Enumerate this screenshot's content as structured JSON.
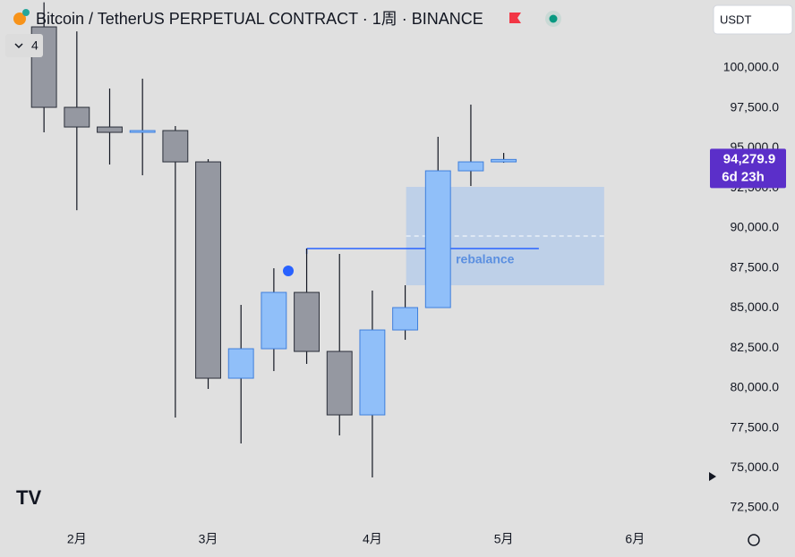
{
  "header": {
    "title": "Bitcoin / TetherUS PERPETUAL CONTRACT · 1周 · BINANCE",
    "currency": "USDT",
    "indicator_count": "4"
  },
  "chart_data": {
    "type": "candlestick",
    "x": [
      0,
      1,
      2,
      3,
      4,
      5,
      6,
      7,
      8,
      9,
      10,
      11,
      12,
      13,
      14
    ],
    "open": [
      102571,
      97540,
      96310,
      95975,
      96087,
      94130,
      80603,
      82447,
      85969,
      82279,
      78311,
      83621,
      85019,
      93571,
      94130
    ],
    "high": [
      104100,
      102290,
      98714,
      99329,
      96366,
      94298,
      85186,
      87478,
      88708,
      88373,
      86081,
      86416,
      95696,
      97708,
      94689
    ],
    "low": [
      95975,
      91110,
      93963,
      93292,
      78143,
      79932,
      76522,
      81050,
      81497,
      77025,
      74398,
      83006,
      85019,
      92621,
      94074
    ],
    "close": [
      97540,
      96310,
      95975,
      96087,
      94130,
      80603,
      82447,
      85969,
      82279,
      78311,
      83621,
      85019,
      93571,
      94130,
      94279.9
    ],
    "up_color": "#90bff9",
    "up_border": "#3f7fdc",
    "down_color": "#9598a1",
    "down_border": "#2a2e39",
    "xlim": [
      -1.34,
      20.2
    ],
    "xticks": [
      {
        "value": 1,
        "label": "2月"
      },
      {
        "value": 5,
        "label": "3月"
      },
      {
        "value": 10,
        "label": "4月"
      },
      {
        "value": 14,
        "label": "5月"
      },
      {
        "value": 18,
        "label": "6月"
      }
    ],
    "ylim": [
      71270,
      104250
    ],
    "yticks": [
      {
        "value": 100000,
        "label": "100,000.0"
      },
      {
        "value": 97500,
        "label": "97,500.0"
      },
      {
        "value": 95000,
        "label": "95,000.0"
      },
      {
        "value": 92500,
        "label": "92,500.0"
      },
      {
        "value": 90000,
        "label": "90,000.0"
      },
      {
        "value": 87500,
        "label": "87,500.0"
      },
      {
        "value": 85000,
        "label": "85,000.0"
      },
      {
        "value": 82500,
        "label": "82,500.0"
      },
      {
        "value": 80000,
        "label": "80,000.0"
      },
      {
        "value": 77500,
        "label": "77,500.0"
      },
      {
        "value": 75000,
        "label": "75,000.0"
      },
      {
        "value": 72500,
        "label": "72,500.0"
      }
    ],
    "last_price": {
      "value": 94279.9,
      "label": "94,279.9"
    },
    "countdown": "6d 23h",
    "zone": {
      "label": "rebalance",
      "top": 92565,
      "bottom": 86416,
      "mid": 89491,
      "x_start": 11.03,
      "x_end": 17.06
    },
    "level_line": {
      "value": 88708,
      "x_start": 8,
      "x_end": 15.07
    }
  }
}
